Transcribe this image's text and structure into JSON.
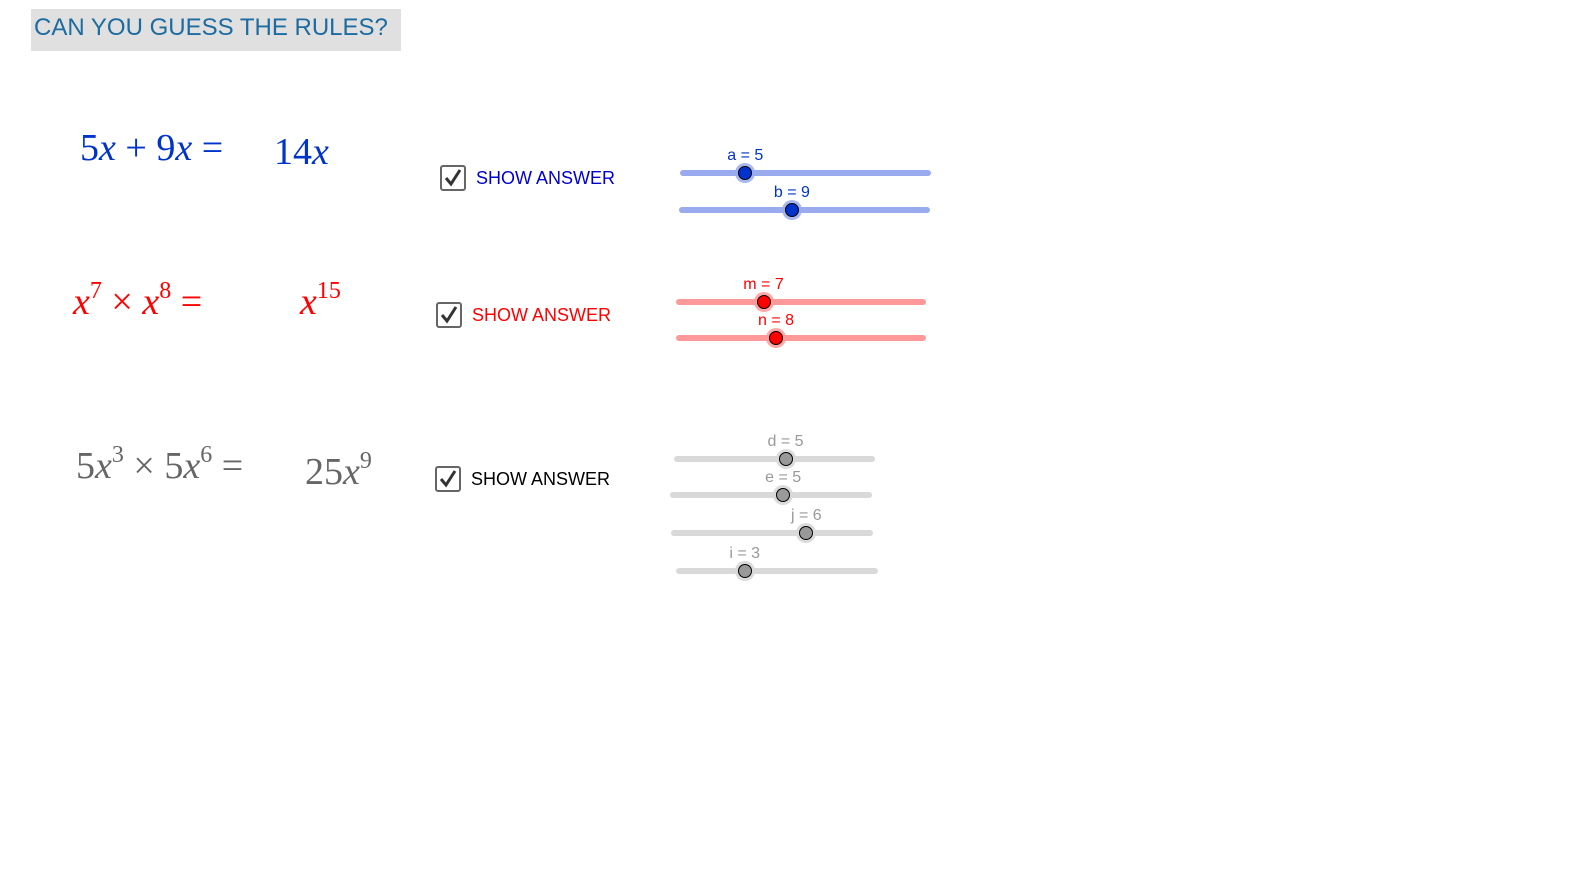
{
  "title": "CAN YOU GUESS THE RULES?",
  "colors": {
    "blue": "#0033cc",
    "blue_track": "#99aaee",
    "red": "#ff0000",
    "red_track": "#ff9999",
    "gray": "#666666",
    "gray_track": "#d9d9d9",
    "title_text": "#1d6ba0",
    "title_bg": "#e0e0e0"
  },
  "rows": [
    {
      "lhs": [
        "5",
        "x",
        " + ",
        "9",
        "x",
        " ="
      ],
      "answer": "14x",
      "checkbox": {
        "label": "SHOW ANSWER",
        "checked": true
      }
    },
    {
      "checkbox": {
        "label": "SHOW ANSWER",
        "checked": true
      }
    },
    {
      "checkbox": {
        "label": "SHOW ANSWER",
        "checked": true
      }
    }
  ],
  "math": {
    "r1": {
      "c1": "5",
      "v1": "x",
      "op": "+",
      "c2": "9",
      "v2": "x",
      "eq": "=",
      "ans_c": "14",
      "ans_v": "x"
    },
    "r2": {
      "v1": "x",
      "e1": "7",
      "op": "×",
      "v2": "x",
      "e2": "8",
      "eq": "=",
      "ans_v": "x",
      "ans_e": "15"
    },
    "r3": {
      "c1": "5",
      "v1": "x",
      "e1": "3",
      "op": "×",
      "c2": "5",
      "v2": "x",
      "e2": "6",
      "eq": "=",
      "ans_c": "25",
      "ans_v": "x",
      "ans_e": "9"
    }
  },
  "sliders": [
    {
      "label": "a = 5",
      "value": 5,
      "position_fraction": 0.26
    },
    {
      "label": "b = 9",
      "value": 9,
      "position_fraction": 0.45
    },
    {
      "label": "m = 7",
      "value": 7,
      "position_fraction": 0.35
    },
    {
      "label": "n = 8",
      "value": 8,
      "position_fraction": 0.4
    },
    {
      "label": "d = 5",
      "value": 5,
      "position_fraction": 0.555
    },
    {
      "label": "e = 5",
      "value": 5,
      "position_fraction": 0.56
    },
    {
      "label": "j = 6",
      "value": 6,
      "position_fraction": 0.67
    },
    {
      "label": "i = 3",
      "value": 3,
      "position_fraction": 0.34
    }
  ]
}
